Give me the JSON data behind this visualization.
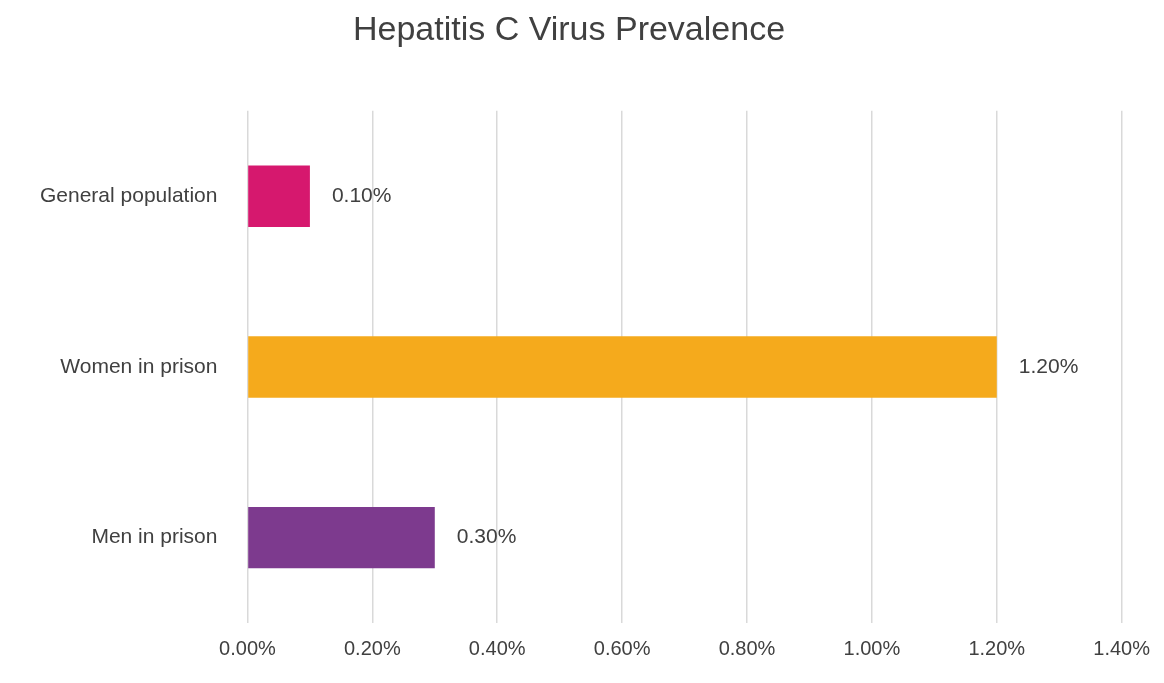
{
  "chart_data": {
    "type": "bar",
    "orientation": "horizontal",
    "title": "Hepatitis C Virus Prevalence",
    "categories": [
      "General population",
      "Women in prison",
      "Men in prison"
    ],
    "values": [
      0.1,
      1.2,
      0.3
    ],
    "colors": [
      "#d6186e",
      "#f5aa1c",
      "#7d3a8e"
    ],
    "value_labels": [
      "0.10%",
      "1.20%",
      "0.30%"
    ],
    "xlim": [
      0,
      1.4
    ],
    "xticks": [
      {
        "value": 0,
        "label": "0.00%"
      },
      {
        "value": 0.2,
        "label": "0.20%"
      },
      {
        "value": 0.4,
        "label": "0.40%"
      },
      {
        "value": 0.6,
        "label": "0.60%"
      },
      {
        "value": 0.8,
        "label": "0.80%"
      },
      {
        "value": 1.0,
        "label": "1.00%"
      },
      {
        "value": 1.2,
        "label": "1.20%"
      },
      {
        "value": 1.4,
        "label": "1.40%"
      }
    ],
    "grid": "x",
    "legend": false
  }
}
